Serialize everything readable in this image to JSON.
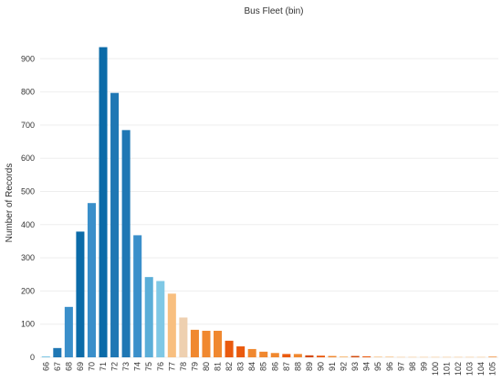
{
  "chart_data": {
    "type": "bar",
    "title": "Bus Fleet (bin)",
    "xlabel": "",
    "ylabel": "Number of Records",
    "ylim": [
      0,
      1000
    ],
    "yticks": [
      0,
      100,
      200,
      300,
      400,
      500,
      600,
      700,
      800,
      900
    ],
    "grid": true,
    "categories": [
      "66",
      "67",
      "68",
      "69",
      "70",
      "71",
      "72",
      "73",
      "74",
      "75",
      "76",
      "77",
      "78",
      "79",
      "80",
      "81",
      "82",
      "83",
      "84",
      "85",
      "86",
      "87",
      "88",
      "89",
      "90",
      "91",
      "92",
      "93",
      "94",
      "95",
      "96",
      "97",
      "98",
      "99",
      "100",
      "101",
      "102",
      "103",
      "104",
      "105"
    ],
    "values": [
      3,
      28,
      152,
      379,
      465,
      935,
      797,
      685,
      368,
      242,
      230,
      192,
      120,
      83,
      80,
      80,
      50,
      33,
      25,
      17,
      13,
      10,
      10,
      6,
      5,
      4,
      3,
      4,
      3,
      2,
      2,
      1,
      1,
      1,
      1,
      1,
      1,
      1,
      1,
      2
    ],
    "colors": [
      "#7fc8e5",
      "#1f77b4",
      "#3a8fca",
      "#0b6ba8",
      "#3a8fca",
      "#0b6ba8",
      "#1f77b4",
      "#1f77b4",
      "#3a8fca",
      "#5aaed8",
      "#7fc8e5",
      "#f8bf7f",
      "#eed0b0",
      "#f0882f",
      "#f0882f",
      "#f0882f",
      "#ea5a0e",
      "#ea5a0e",
      "#f0882f",
      "#f0882f",
      "#f0882f",
      "#ea5a0e",
      "#f0882f",
      "#d2490b",
      "#ea5a0e",
      "#f0882f",
      "#f8bf7f",
      "#d2490b",
      "#ea5a0e",
      "#f8bf7f",
      "#f8bf7f",
      "#f8bf7f",
      "#f8bf7f",
      "#f8bf7f",
      "#f8bf7f",
      "#f8bf7f",
      "#f8bf7f",
      "#f8bf7f",
      "#f8bf7f",
      "#f0882f"
    ]
  }
}
